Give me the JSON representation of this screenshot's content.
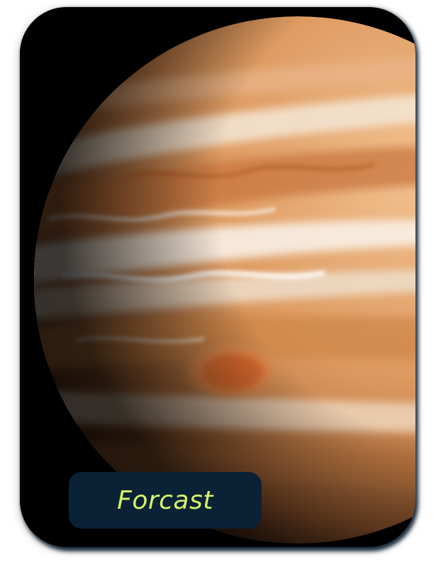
{
  "card": {
    "image_subject": "planet-jupiter-image",
    "badge_label": "Forcast"
  },
  "colors": {
    "card_border": "#0c2234",
    "badge_background": "#0b2236",
    "badge_text": "#d7f36b",
    "space_background": "#000000",
    "planet_base": "#d9935a"
  }
}
